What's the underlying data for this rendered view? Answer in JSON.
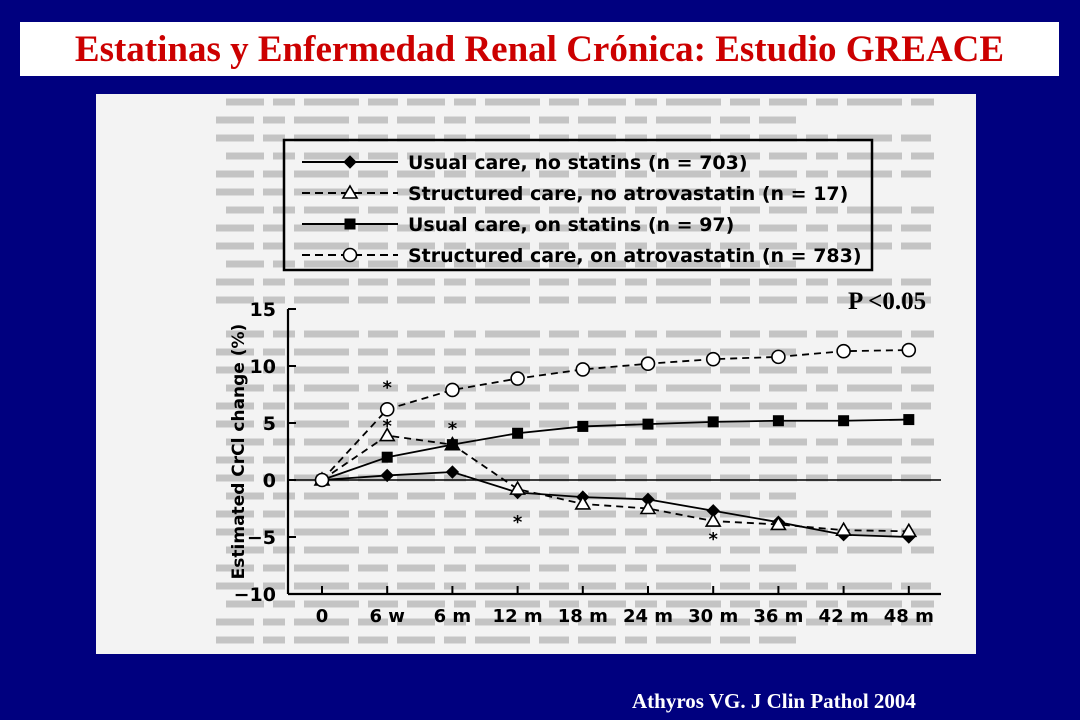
{
  "slide": {
    "title": "Estatinas y Enfermedad Renal Crónica: Estudio GREACE",
    "p_value": "P <0.05",
    "citation": "Athyros VG. J Clin Pathol 2004"
  },
  "colors": {
    "background": "#00007f",
    "title_text": "#cc0000",
    "title_box": "#ffffff",
    "citation_text": "#ffffff",
    "figure_background": "#f3f3f3"
  },
  "chart_data": {
    "type": "line",
    "title": "",
    "xlabel": "",
    "ylabel": "Estimated CrCl change (%)",
    "categories": [
      "0",
      "6 w",
      "6 m",
      "12 m",
      "18 m",
      "24 m",
      "30 m",
      "36 m",
      "42 m",
      "48 m"
    ],
    "ylim": [
      -10,
      15
    ],
    "yticks": [
      "15",
      "10",
      "5",
      "0",
      "−5",
      "−10"
    ],
    "ytick_values": [
      15,
      10,
      5,
      0,
      -5,
      -10
    ],
    "grid": false,
    "legend_position": "top",
    "series": [
      {
        "name": "Usual care, no statins (n = 703)",
        "line": "solid",
        "marker": "diamond",
        "values": [
          0,
          0.4,
          0.7,
          -1.1,
          -1.5,
          -1.7,
          -2.7,
          -3.7,
          -4.8,
          -5.0
        ]
      },
      {
        "name": "Structured care, no atrovastatin (n = 17)",
        "line": "dashed",
        "marker": "triangle",
        "values": [
          0,
          3.9,
          3.1,
          -0.8,
          -2.1,
          -2.5,
          -3.6,
          -3.9,
          -4.4,
          -4.5
        ]
      },
      {
        "name": "Usual care, on statins (n = 97)",
        "line": "solid",
        "marker": "square",
        "values": [
          0,
          2.0,
          3.1,
          4.1,
          4.7,
          4.9,
          5.1,
          5.2,
          5.2,
          5.3
        ]
      },
      {
        "name": "Structured care, on atrovastatin (n = 783)",
        "line": "dashed",
        "marker": "circle",
        "values": [
          0,
          6.2,
          7.9,
          8.9,
          9.7,
          10.2,
          10.6,
          10.8,
          11.3,
          11.4
        ]
      }
    ],
    "annotations": [
      {
        "text": "*",
        "x": "6 w",
        "y": 8.3
      },
      {
        "text": "*",
        "x": "6 w",
        "y": 4.9
      },
      {
        "text": "*",
        "x": "6 m",
        "y": 4.7
      },
      {
        "text": "*",
        "x": "12 m",
        "y": -3.5
      },
      {
        "text": "*",
        "x": "30 m",
        "y": -5.0
      }
    ]
  }
}
